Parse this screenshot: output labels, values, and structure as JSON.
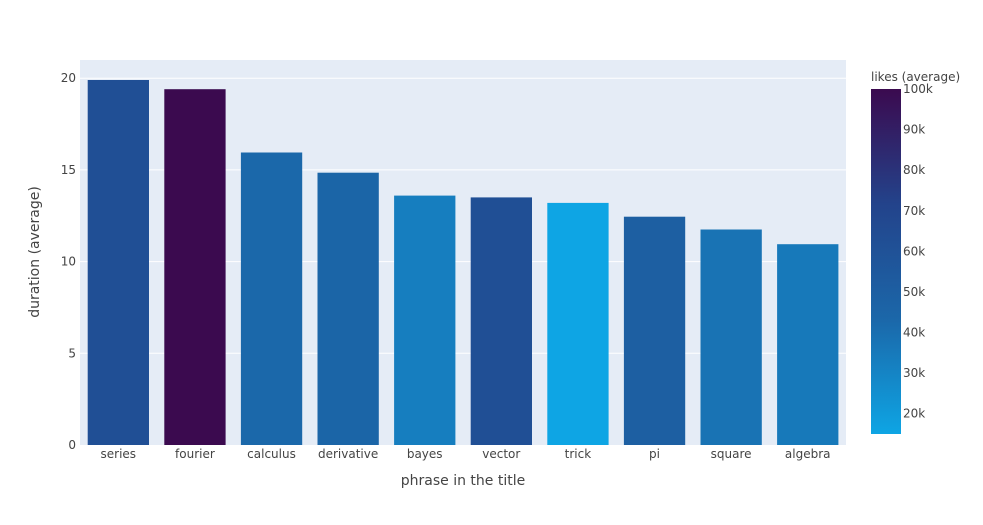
{
  "chart_data": {
    "type": "bar",
    "xlabel": "phrase in the title",
    "ylabel": "duration (average)",
    "ylim": [
      0,
      21
    ],
    "yticks": [
      0,
      5,
      10,
      15,
      20
    ],
    "grid": true,
    "plot_background": "#E5ECF6",
    "categories": [
      "series",
      "fourier",
      "calculus",
      "derivative",
      "bayes",
      "vector",
      "trick",
      "pi",
      "square",
      "algebra"
    ],
    "values": [
      19.9,
      19.4,
      15.95,
      14.85,
      13.6,
      13.5,
      13.2,
      12.45,
      11.75,
      10.95
    ],
    "color_values": [
      62000,
      100000,
      43000,
      45000,
      33000,
      62000,
      15000,
      50000,
      38000,
      35000
    ],
    "colorbar": {
      "title": "likes (average)",
      "range": [
        15000,
        100000
      ],
      "ticks": [
        20000,
        30000,
        40000,
        50000,
        60000,
        70000,
        80000,
        90000,
        100000
      ],
      "tick_labels": [
        "20k",
        "30k",
        "40k",
        "50k",
        "60k",
        "70k",
        "80k",
        "90k",
        "100k"
      ],
      "colors": [
        "#0EA5E4",
        "#1B67A9",
        "#23438B",
        "#3B0A4F"
      ]
    }
  }
}
